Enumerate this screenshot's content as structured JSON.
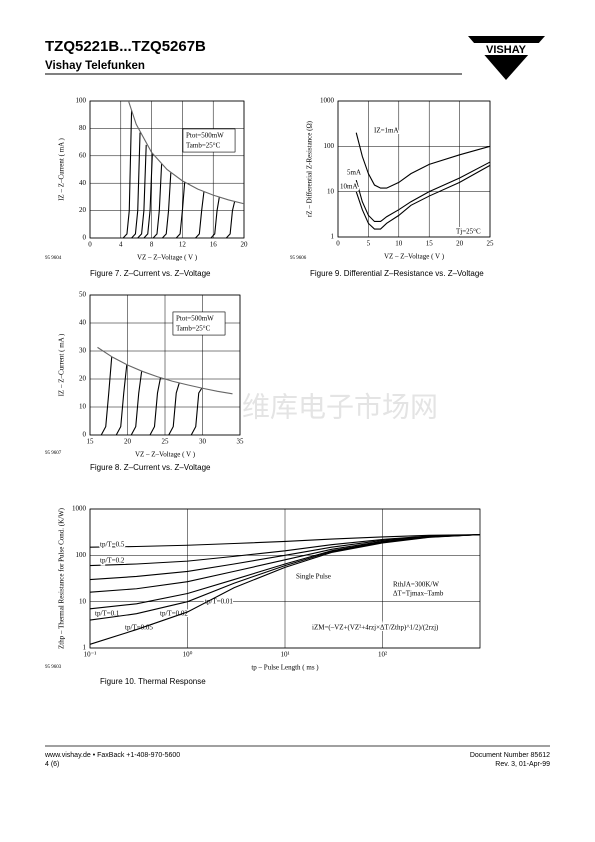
{
  "header": {
    "title": "TZQ5221B...TZQ5267B",
    "subtitle": "Vishay Telefunken",
    "logo": "VISHAY"
  },
  "watermark": "维库电子市场网",
  "footer": {
    "left1": "www.vishay.de • FaxBack +1-408-970-5600",
    "left2": "4 (6)",
    "right1": "Document Number 85612",
    "right2": "Rev. 3, 01-Apr-99"
  },
  "chart_data": [
    {
      "type": "line",
      "title": "Figure 7.  Z–Current vs. Z–Voltage",
      "code": "95 9604",
      "x_label": "VZ – Z–Voltage ( V )",
      "y_label": "IZ – Z–Current ( mA )",
      "xlim": [
        0,
        20
      ],
      "ylim": [
        0,
        100
      ],
      "xticks": [
        0,
        4,
        8,
        12,
        16,
        20
      ],
      "yticks": [
        0,
        20,
        40,
        60,
        80,
        100
      ],
      "grid": true,
      "annotations": [
        "Ptot=500mW",
        "Tamb=25°C"
      ],
      "series": [
        {
          "color": "#000000",
          "x": [
            4.3,
            4.8,
            5.1,
            5.4
          ],
          "values": [
            0,
            3,
            20,
            93
          ]
        },
        {
          "color": "#000000",
          "x": [
            5.4,
            5.9,
            6.2,
            6.5
          ],
          "values": [
            0,
            3,
            20,
            77
          ]
        },
        {
          "color": "#000000",
          "x": [
            6.2,
            6.7,
            7.0,
            7.3
          ],
          "values": [
            0,
            3,
            20,
            68
          ]
        },
        {
          "color": "#000000",
          "x": [
            7.0,
            7.5,
            7.8,
            8.1
          ],
          "values": [
            0,
            3,
            20,
            62
          ]
        },
        {
          "color": "#000000",
          "x": [
            8.2,
            8.7,
            9.0,
            9.3
          ],
          "values": [
            0,
            3,
            20,
            54
          ]
        },
        {
          "color": "#000000",
          "x": [
            9.4,
            9.9,
            10.2,
            10.5
          ],
          "values": [
            0,
            3,
            20,
            48
          ]
        },
        {
          "color": "#000000",
          "x": [
            11.2,
            11.7,
            12,
            12.3
          ],
          "values": [
            0,
            3,
            20,
            41
          ]
        },
        {
          "color": "#000000",
          "x": [
            13.7,
            14.2,
            14.5,
            14.8
          ],
          "values": [
            0,
            3,
            20,
            34
          ]
        },
        {
          "color": "#000000",
          "x": [
            15.7,
            16.2,
            16.5,
            16.8
          ],
          "values": [
            0,
            3,
            20,
            30
          ]
        },
        {
          "color": "#000000",
          "x": [
            17.7,
            18.2,
            18.5,
            18.8
          ],
          "values": [
            0,
            3,
            20,
            27
          ]
        },
        {
          "color": "#666666",
          "x": [
            5,
            6,
            8,
            10,
            12,
            14,
            16,
            18,
            20
          ],
          "values": [
            100,
            83,
            62.5,
            50,
            41.7,
            35.7,
            31.3,
            27.8,
            25
          ]
        }
      ]
    },
    {
      "type": "line",
      "title": "Figure 8.  Z–Current vs. Z–Voltage",
      "code": "95 9607",
      "x_label": "VZ – Z–Voltage ( V )",
      "y_label": "IZ – Z–Current ( mA )",
      "xlim": [
        15,
        35
      ],
      "ylim": [
        0,
        50
      ],
      "xticks": [
        15,
        20,
        25,
        30,
        35
      ],
      "yticks": [
        0,
        10,
        20,
        30,
        40,
        50
      ],
      "grid": true,
      "annotations": [
        "Ptot=500mW",
        "Tamb=25°C"
      ],
      "series": [
        {
          "color": "#000000",
          "x": [
            16.5,
            17.1,
            17.5,
            17.9
          ],
          "values": [
            0,
            3,
            15,
            28
          ]
        },
        {
          "color": "#000000",
          "x": [
            18.5,
            19.1,
            19.5,
            19.9
          ],
          "values": [
            0,
            3,
            15,
            25
          ]
        },
        {
          "color": "#000000",
          "x": [
            20.5,
            21.1,
            21.5,
            21.9
          ],
          "values": [
            0,
            3,
            15,
            23
          ]
        },
        {
          "color": "#000000",
          "x": [
            23,
            23.6,
            24,
            24.4
          ],
          "values": [
            0,
            3,
            15,
            20.5
          ]
        },
        {
          "color": "#000000",
          "x": [
            25.5,
            26.1,
            26.5,
            26.9
          ],
          "values": [
            0,
            3,
            15,
            18.6
          ]
        },
        {
          "color": "#000000",
          "x": [
            28.5,
            29.1,
            29.5,
            29.9
          ],
          "values": [
            0,
            3,
            15,
            16.7
          ]
        },
        {
          "color": "#666666",
          "x": [
            16,
            18,
            20,
            22,
            24,
            26,
            28,
            30,
            32,
            34
          ],
          "values": [
            31.3,
            27.8,
            25,
            22.7,
            20.8,
            19.2,
            17.9,
            16.7,
            15.6,
            14.7
          ]
        }
      ]
    },
    {
      "type": "line",
      "title": "Figure 9.  Differential Z–Resistance vs. Z–Voltage",
      "code": "95 9606",
      "x_label": "VZ – Z–Voltage ( V )",
      "y_label": "rZ – Differential Z-Resistance (Ω)",
      "xlim": [
        0,
        25
      ],
      "ylim": [
        1,
        1000
      ],
      "ylog": true,
      "xticks": [
        0,
        5,
        10,
        15,
        20,
        25
      ],
      "yticks": [
        1,
        10,
        100,
        1000
      ],
      "grid": true,
      "annotations": [
        "IZ=1mA",
        "5mA",
        "10mA",
        "Tj=25°C"
      ],
      "x": [
        3,
        4,
        5,
        6,
        7,
        8,
        10,
        12,
        15,
        20,
        25
      ],
      "series": [
        {
          "color": "#000000",
          "values": [
            200,
            60,
            25,
            14,
            12,
            12,
            16,
            25,
            40,
            65,
            100
          ]
        },
        {
          "color": "#000000",
          "values": [
            18,
            6,
            3,
            2.2,
            2.2,
            2.8,
            4,
            6,
            10,
            20,
            45
          ]
        },
        {
          "color": "#000000",
          "values": [
            10,
            4,
            2,
            1.5,
            1.5,
            2,
            3,
            5,
            8,
            16,
            38
          ]
        }
      ]
    },
    {
      "type": "line",
      "title": "Figure 10.  Thermal Response",
      "code": "95 9603",
      "x_label": "tp – Pulse Length ( ms )",
      "y_label": "Zthp – Thermal Resistance for Pulse Cond. (K/W)",
      "xlim": [
        0.1,
        1000
      ],
      "ylim": [
        1,
        1000
      ],
      "xlog": true,
      "ylog": true,
      "xticks": [
        {
          "value": 0.1,
          "label": "10⁻¹"
        },
        {
          "value": 1,
          "label": "10⁰"
        },
        {
          "value": 10,
          "label": "10¹"
        },
        {
          "value": 100,
          "label": "10²"
        }
      ],
      "yticks": [
        1,
        10,
        100,
        1000
      ],
      "grid": true,
      "annotations": [
        "RthJA=300K/W",
        "ΔT=Tjmax–Tamb",
        "iZM=(–VZ+(VZ²+4rzj×ΔT/Zthp)^1/2)/(2rzj)"
      ],
      "x": [
        0.1,
        0.3,
        1,
        3,
        10,
        30,
        100,
        300,
        1000
      ],
      "series": [
        {
          "name": "tp/T=0.5",
          "color": "#000000",
          "values": [
            150,
            155,
            165,
            180,
            200,
            225,
            250,
            270,
            280
          ]
        },
        {
          "name": "tp/T=0.2",
          "color": "#000000",
          "values": [
            60,
            65,
            75,
            95,
            125,
            170,
            220,
            260,
            280
          ]
        },
        {
          "name": "tp/T=0.1",
          "color": "#000000",
          "values": [
            30,
            35,
            45,
            65,
            100,
            150,
            210,
            255,
            280
          ]
        },
        {
          "name": "tp/T=0.05",
          "color": "#000000",
          "values": [
            16,
            19,
            27,
            45,
            80,
            135,
            200,
            250,
            280
          ]
        },
        {
          "name": "tp/T=0.02",
          "color": "#000000",
          "values": [
            7,
            9,
            15,
            30,
            65,
            125,
            195,
            250,
            280
          ]
        },
        {
          "name": "tp/T=0.01",
          "color": "#000000",
          "values": [
            4,
            5.5,
            10,
            25,
            60,
            120,
            190,
            248,
            280
          ]
        },
        {
          "name": "Single Pulse",
          "color": "#000000",
          "values": [
            1.2,
            2.5,
            6,
            20,
            55,
            115,
            185,
            245,
            280
          ]
        }
      ]
    }
  ]
}
